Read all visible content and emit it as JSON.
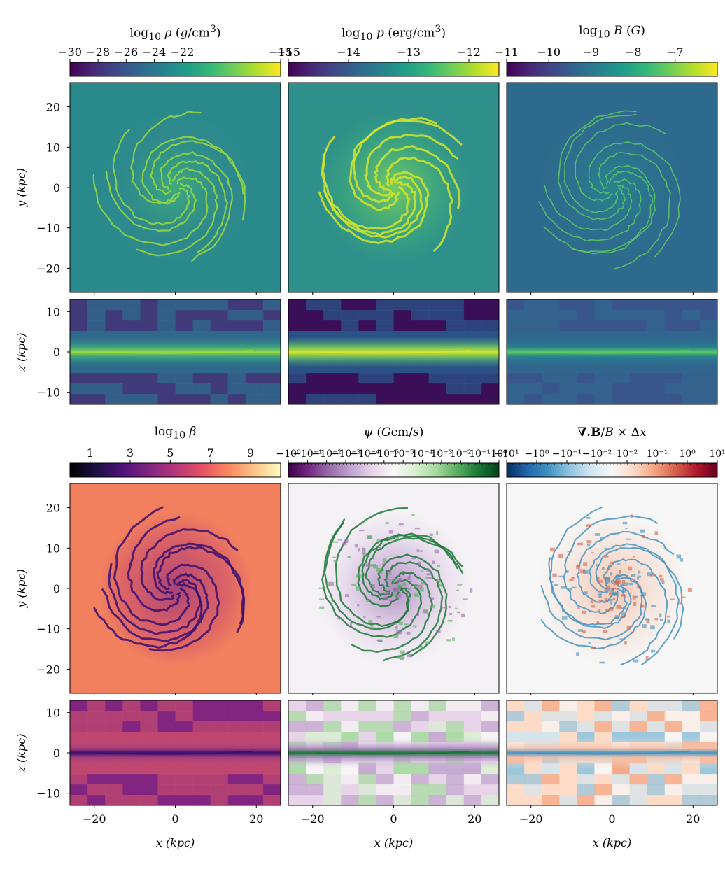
{
  "chart_data": [
    {
      "type": "heatmap",
      "quantity": "density",
      "colorbar_label": "log10 ρ (g/cm³)",
      "colormap": "viridis",
      "colorbar_ticks": [
        "−30",
        "−28",
        "−26",
        "−24",
        "−22",
        "−15"
      ],
      "clim": [
        -30,
        -15
      ],
      "rows": [
        {
          "view": "face-on",
          "ylabel": "y (kpc)",
          "ylim": [
            -26,
            26
          ],
          "yticks": [
            "20",
            "10",
            "0",
            "−10",
            "−20"
          ]
        },
        {
          "view": "edge-on",
          "ylabel": "z (kpc)",
          "ylim": [
            -13,
            13
          ],
          "yticks": [
            "10",
            "0",
            "−10"
          ]
        }
      ],
      "xlim": [
        -26,
        26
      ]
    },
    {
      "type": "heatmap",
      "quantity": "pressure",
      "colorbar_label": "log10 p (erg/cm³)",
      "colormap": "viridis",
      "colorbar_ticks": [
        "−15",
        "−14",
        "−13",
        "−12"
      ],
      "clim": [
        -15,
        -11.5
      ],
      "rows": [
        {
          "view": "face-on",
          "ylim": [
            -26,
            26
          ]
        },
        {
          "view": "edge-on",
          "ylim": [
            -13,
            13
          ]
        }
      ],
      "xlim": [
        -26,
        26
      ]
    },
    {
      "type": "heatmap",
      "quantity": "magnetic field",
      "colorbar_label": "log10 B (G)",
      "colormap": "viridis",
      "colorbar_ticks": [
        "−11",
        "−10",
        "−9",
        "−8",
        "−7"
      ],
      "clim": [
        -11,
        -6
      ],
      "rows": [
        {
          "view": "face-on",
          "ylim": [
            -26,
            26
          ]
        },
        {
          "view": "edge-on",
          "ylim": [
            -13,
            13
          ]
        }
      ],
      "xlim": [
        -26,
        26
      ]
    },
    {
      "type": "heatmap",
      "quantity": "plasma beta",
      "colorbar_label": "log10 β",
      "colormap": "magma",
      "colorbar_ticks": [
        "1",
        "3",
        "5",
        "7",
        "9"
      ],
      "clim": [
        0,
        10.5
      ],
      "rows": [
        {
          "view": "face-on",
          "ylabel": "y (kpc)",
          "ylim": [
            -26,
            26
          ],
          "yticks": [
            "20",
            "10",
            "0",
            "−10",
            "−20"
          ]
        },
        {
          "view": "edge-on",
          "ylabel": "z (kpc)",
          "ylim": [
            -13,
            13
          ],
          "yticks": [
            "10",
            "0",
            "−10"
          ]
        }
      ],
      "xlabel": "x (kpc)",
      "xticks": [
        "−20",
        "0",
        "20"
      ],
      "xlim": [
        -26,
        26
      ]
    },
    {
      "type": "heatmap",
      "quantity": "divergence cleaning scalar",
      "colorbar_label": "ψ (Gcm/s)",
      "colormap": "PRGn",
      "colorbar_scale": "symlog",
      "colorbar_ticks": [
        "−10⁰",
        "−10⁻¹",
        "−10⁻²",
        "−10⁻³",
        "−10⁻⁴",
        "−10⁻⁵",
        "10⁻⁵",
        "10⁻⁴",
        "10⁻³",
        "10⁻²",
        "10⁻¹",
        "10⁰"
      ],
      "rows": [
        {
          "view": "face-on",
          "ylim": [
            -26,
            26
          ]
        },
        {
          "view": "edge-on",
          "ylim": [
            -13,
            13
          ]
        }
      ],
      "xlabel": "x (kpc)",
      "xticks": [
        "−20",
        "0",
        "20"
      ],
      "xlim": [
        -26,
        26
      ]
    },
    {
      "type": "heatmap",
      "quantity": "relative divergence error",
      "colorbar_label": "∇.B/B × Δx",
      "colormap": "RdBu_r",
      "colorbar_scale": "symlog",
      "colorbar_ticks": [
        "−10¹",
        "−10⁰",
        "−10⁻¹",
        "−10⁻²",
        "10⁻²",
        "10⁻¹",
        "10⁰",
        "10¹"
      ],
      "rows": [
        {
          "view": "face-on",
          "ylim": [
            -26,
            26
          ]
        },
        {
          "view": "edge-on",
          "ylim": [
            -13,
            13
          ]
        }
      ],
      "xlabel": "x (kpc)",
      "xticks": [
        "−20",
        "0",
        "20"
      ],
      "xlim": [
        -26,
        26
      ]
    }
  ]
}
